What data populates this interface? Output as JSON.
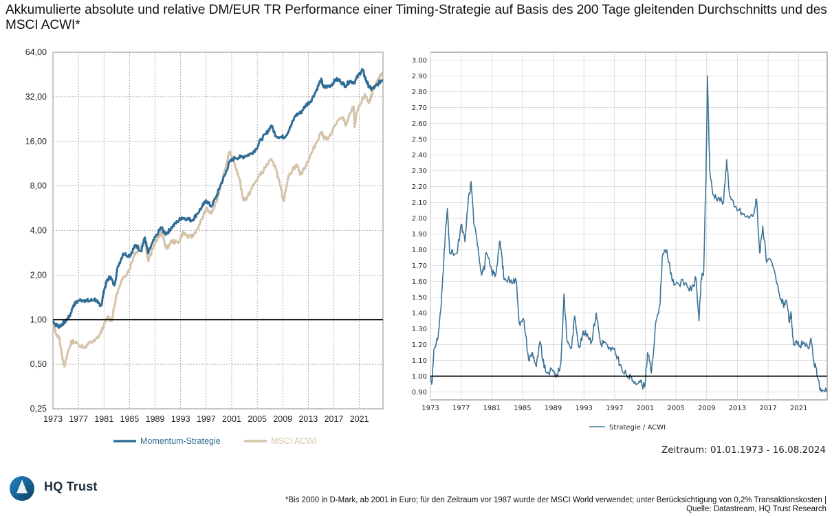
{
  "header": {
    "title": "Akkumulierte absolute und relative DM/EUR TR Performance einer Timing-Strategie auf Basis des 200 Tage gleitenden Durchschnitts und des MSCI ACWI*"
  },
  "footer": {
    "zeitraum": "Zeitraum: 01.01.1973 - 16.08.2024",
    "footnote_line1": "*Bis 2000 in D-Mark, ab 2001 in Euro; für den Zeitraum vor 1987 wurde der MSCI World verwendet; unter Berücksichtigung von 0,2% Transaktionskosten |",
    "footnote_line2": "Quelle: Datastream, HQ Trust Research",
    "logo_text": "HQ Trust"
  },
  "colors": {
    "strategy": "#2f6d96",
    "msci": "#d5c3aa",
    "ratio": "#3d7396",
    "baseline": "#000000"
  },
  "chart_data": [
    {
      "type": "line",
      "scale": "log2",
      "title": "",
      "xlabel": "",
      "ylabel": "",
      "xlim": [
        1973,
        2024.7
      ],
      "ylim": [
        0.25,
        64
      ],
      "yticks": [
        0.25,
        0.5,
        1,
        2,
        4,
        8,
        16,
        32,
        64
      ],
      "ytick_labels": [
        "0,25",
        "0,50",
        "1,00",
        "2,00",
        "4,00",
        "8,00",
        "16,00",
        "32,00",
        "64,00"
      ],
      "xticks": [
        1973,
        1977,
        1981,
        1985,
        1989,
        1993,
        1997,
        2001,
        2005,
        2009,
        2013,
        2017,
        2021
      ],
      "xtick_labels": [
        "1973",
        "1977",
        "1981",
        "1985",
        "1989",
        "1993",
        "1997",
        "2001",
        "2005",
        "2009",
        "2013",
        "2017",
        "2021"
      ],
      "baseline": 1.0,
      "grid": true,
      "legend_position": "bottom",
      "series": [
        {
          "name": "Momentum-Strategie",
          "x": [
            1973.0,
            1973.5,
            1974.0,
            1974.5,
            1975.0,
            1975.6,
            1976.2,
            1977.0,
            1978.0,
            1978.7,
            1979.5,
            1980.0,
            1980.6,
            1981.0,
            1981.5,
            1982.0,
            1982.6,
            1983.2,
            1984.0,
            1985.0,
            1985.6,
            1986.0,
            1986.8,
            1987.4,
            1987.9,
            1988.6,
            1989.5,
            1990.0,
            1990.5,
            1991.0,
            1991.6,
            1992.5,
            1993.2,
            1994.0,
            1994.8,
            1995.6,
            1996.4,
            1997.0,
            1997.8,
            1998.6,
            1999.2,
            2000.0,
            2000.6,
            2001.5,
            2002.4,
            2003.2,
            2004.0,
            2004.8,
            2005.6,
            2006.4,
            2007.2,
            2007.9,
            2008.8,
            2009.5,
            2010.2,
            2011.0,
            2011.8,
            2012.6,
            2013.4,
            2014.2,
            2015.0,
            2015.4,
            2016.0,
            2016.6,
            2017.3,
            2018.0,
            2018.8,
            2019.5,
            2020.2,
            2020.9,
            2021.5,
            2021.9,
            2022.3,
            2022.8,
            2023.4,
            2024.0,
            2024.6
          ],
          "y": [
            0.98,
            0.92,
            0.9,
            0.94,
            0.98,
            1.05,
            1.25,
            1.35,
            1.36,
            1.33,
            1.38,
            1.3,
            1.25,
            1.58,
            1.85,
            1.95,
            1.7,
            2.3,
            2.8,
            2.7,
            3.0,
            3.2,
            2.9,
            3.6,
            2.8,
            3.3,
            3.9,
            4.2,
            3.8,
            3.9,
            4.2,
            4.6,
            4.9,
            4.8,
            4.7,
            5.2,
            5.8,
            6.4,
            5.8,
            6.8,
            8.0,
            9.6,
            11.5,
            12.4,
            12.5,
            12.8,
            13.2,
            14.2,
            16.5,
            18.0,
            20.5,
            17.5,
            17.0,
            17.5,
            20.0,
            24.0,
            25.0,
            28.0,
            30.0,
            35.0,
            42.0,
            37.0,
            37.5,
            38.5,
            42.0,
            41.0,
            38.0,
            41.0,
            40.0,
            45.0,
            49.0,
            43.0,
            39.0,
            36.0,
            37.0,
            39.5,
            42.0
          ]
        },
        {
          "name": "MSCI ACWI",
          "x": [
            1973.0,
            1973.5,
            1974.0,
            1974.4,
            1974.8,
            1975.4,
            1976.0,
            1977.0,
            1978.0,
            1978.8,
            1979.6,
            1980.4,
            1981.0,
            1981.6,
            1982.2,
            1983.0,
            1984.0,
            1985.0,
            1985.8,
            1986.5,
            1987.4,
            1987.9,
            1988.6,
            1989.5,
            1990.0,
            1990.8,
            1991.6,
            1992.6,
            1993.4,
            1994.2,
            1995.0,
            1996.0,
            1997.0,
            1997.8,
            1998.6,
            1999.4,
            2000.0,
            2000.6,
            2001.4,
            2002.2,
            2002.8,
            2003.4,
            2004.2,
            2005.2,
            2006.0,
            2007.0,
            2007.8,
            2008.6,
            2009.1,
            2009.8,
            2010.6,
            2011.3,
            2011.8,
            2012.6,
            2013.4,
            2014.2,
            2015.0,
            2015.5,
            2016.1,
            2016.8,
            2017.6,
            2018.5,
            2018.9,
            2019.6,
            2020.1,
            2020.25,
            2020.6,
            2021.4,
            2021.9,
            2022.5,
            2022.9,
            2023.5,
            2024.0,
            2024.6
          ],
          "y": [
            0.95,
            0.8,
            0.75,
            0.58,
            0.48,
            0.62,
            0.72,
            0.68,
            0.65,
            0.7,
            0.72,
            0.8,
            0.92,
            1.05,
            0.98,
            1.5,
            1.9,
            2.2,
            2.8,
            3.0,
            3.5,
            2.5,
            3.0,
            3.6,
            3.9,
            3.0,
            3.4,
            3.3,
            3.9,
            3.6,
            3.7,
            4.4,
            5.6,
            5.2,
            6.2,
            8.5,
            10.5,
            13.5,
            11.5,
            9.0,
            6.5,
            6.6,
            7.8,
            9.2,
            10.2,
            12.0,
            11.0,
            8.0,
            6.3,
            9.0,
            10.5,
            11.0,
            9.5,
            11.0,
            13.0,
            15.5,
            18.5,
            17.0,
            16.5,
            19.0,
            22.0,
            23.0,
            20.5,
            25.0,
            27.5,
            20.0,
            25.0,
            30.0,
            33.0,
            29.0,
            33.0,
            38.0,
            42.0,
            47.0
          ]
        }
      ]
    },
    {
      "type": "line",
      "title": "",
      "xlabel": "",
      "ylabel": "",
      "xlim": [
        1973,
        2024.7
      ],
      "ylim": [
        0.85,
        3.05
      ],
      "yticks": [
        0.9,
        1.0,
        1.1,
        1.2,
        1.3,
        1.4,
        1.5,
        1.6,
        1.7,
        1.8,
        1.9,
        2.0,
        2.1,
        2.2,
        2.3,
        2.4,
        2.5,
        2.6,
        2.7,
        2.8,
        2.9,
        3.0
      ],
      "ytick_labels": [
        "0.90",
        "1.00",
        "1.10",
        "1.20",
        "1.30",
        "1.40",
        "1.50",
        "1.60",
        "1.70",
        "1.80",
        "1.90",
        "2.00",
        "2.10",
        "2.20",
        "2.30",
        "2.40",
        "2.50",
        "2.60",
        "2.70",
        "2.80",
        "2.90",
        "3.00"
      ],
      "xticks": [
        1973,
        1977,
        1981,
        1985,
        1989,
        1993,
        1997,
        2001,
        2005,
        2009,
        2013,
        2017,
        2021
      ],
      "xtick_labels": [
        "1973",
        "1977",
        "1981",
        "1985",
        "1989",
        "1993",
        "1997",
        "2001",
        "2005",
        "2009",
        "2013",
        "2017",
        "2021"
      ],
      "baseline": 1.0,
      "grid": true,
      "legend_position": "bottom",
      "series": [
        {
          "name": "Strategie / ACWI",
          "x": [
            1973.0,
            1973.2,
            1973.5,
            1974.0,
            1974.4,
            1974.8,
            1975.2,
            1975.5,
            1976.5,
            1977.0,
            1977.5,
            1977.9,
            1978.3,
            1978.7,
            1979.2,
            1979.6,
            1980.0,
            1980.3,
            1981.0,
            1981.5,
            1982.0,
            1982.2,
            1982.6,
            1983.5,
            1984.2,
            1984.6,
            1985.2,
            1985.8,
            1986.3,
            1986.8,
            1987.3,
            1987.6,
            1988.0,
            1989.0,
            1989.5,
            1990.0,
            1990.4,
            1990.8,
            1991.4,
            1991.8,
            1992.4,
            1992.8,
            1993.4,
            1994.0,
            1994.6,
            1995.2,
            1995.6,
            1996.2,
            1996.8,
            1997.4,
            1998.0,
            1998.8,
            1999.4,
            2000.2,
            2000.9,
            2001.3,
            2001.8,
            2002.4,
            2002.9,
            2003.2,
            2003.8,
            2004.5,
            2005.2,
            2006.2,
            2007.0,
            2007.6,
            2008.0,
            2008.3,
            2008.6,
            2008.9,
            2009.1,
            2009.4,
            2009.8,
            2010.5,
            2011.2,
            2011.6,
            2012.0,
            2012.6,
            2013.2,
            2014.0,
            2015.0,
            2015.5,
            2015.9,
            2016.3,
            2016.8,
            2017.5,
            2018.4,
            2019.0,
            2019.3,
            2019.8,
            2020.0,
            2020.3,
            2020.8,
            2021.5,
            2022.2,
            2022.6,
            2022.9,
            2023.3,
            2023.7,
            2024.0,
            2024.6
          ],
          "y": [
            1.0,
            0.96,
            1.18,
            1.25,
            1.45,
            1.8,
            2.06,
            1.78,
            1.78,
            1.96,
            1.85,
            2.1,
            2.23,
            1.95,
            1.82,
            1.66,
            1.68,
            1.78,
            1.66,
            1.64,
            1.85,
            1.8,
            1.61,
            1.61,
            1.6,
            1.33,
            1.35,
            1.1,
            1.15,
            1.06,
            1.22,
            1.11,
            1.03,
            1.03,
            1.0,
            1.08,
            1.52,
            1.22,
            1.18,
            1.38,
            1.18,
            1.26,
            1.27,
            1.22,
            1.4,
            1.2,
            1.22,
            1.17,
            1.17,
            1.12,
            1.03,
            1.0,
            0.97,
            0.97,
            0.93,
            1.15,
            1.02,
            1.35,
            1.45,
            1.75,
            1.8,
            1.6,
            1.59,
            1.59,
            1.54,
            1.62,
            1.35,
            1.62,
            1.65,
            2.25,
            2.9,
            2.3,
            2.15,
            2.13,
            2.1,
            2.37,
            2.14,
            2.07,
            2.05,
            2.01,
            2.01,
            2.12,
            1.78,
            1.95,
            1.72,
            1.72,
            1.53,
            1.45,
            1.48,
            1.34,
            1.4,
            1.2,
            1.2,
            1.2,
            1.18,
            1.24,
            1.1,
            1.05,
            0.93,
            0.9,
            0.9
          ]
        }
      ]
    }
  ]
}
